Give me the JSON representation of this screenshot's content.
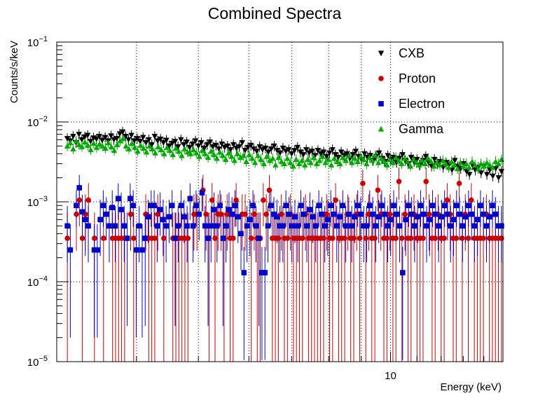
{
  "chart_data": {
    "type": "scatter",
    "title": "Combined Spectra",
    "xlabel": "Energy (keV)",
    "ylabel": "Counts/s/keV",
    "xscale": "log",
    "yscale": "log",
    "xlim": [
      3,
      15
    ],
    "ylim": [
      1e-05,
      0.1
    ],
    "grid": true,
    "legend_position": "top-right",
    "x_tick_labels": [
      {
        "value": 10,
        "text": "10"
      }
    ],
    "y_tick_labels": [
      {
        "value": 1e-05,
        "mantissa": "10",
        "exp": "−5"
      },
      {
        "value": 0.0001,
        "mantissa": "10",
        "exp": "−4"
      },
      {
        "value": 0.001,
        "mantissa": "10",
        "exp": "−3"
      },
      {
        "value": 0.01,
        "mantissa": "10",
        "exp": "−2"
      },
      {
        "value": 0.1,
        "mantissa": "10",
        "exp": "−1"
      }
    ],
    "bin_edges": [
      3.1,
      15.0
    ],
    "series": [
      {
        "name": "CXB",
        "marker": "triangle-down",
        "color": "#000000",
        "values": [
          0.0062,
          0.0058,
          0.0066,
          0.0055,
          0.007,
          0.006,
          0.0065,
          0.0068,
          0.0057,
          0.0063,
          0.0061,
          0.0066,
          0.0059,
          0.0064,
          0.0058,
          0.0067,
          0.006,
          0.0062,
          0.0071,
          0.0075,
          0.0066,
          0.006,
          0.0068,
          0.0058,
          0.0062,
          0.0057,
          0.0064,
          0.0055,
          0.006,
          0.0052,
          0.0066,
          0.0058,
          0.0061,
          0.0055,
          0.0059,
          0.005,
          0.0054,
          0.0057,
          0.0049,
          0.006,
          0.0052,
          0.0056,
          0.0048,
          0.0053,
          0.0058,
          0.005,
          0.0055,
          0.0047,
          0.0052,
          0.0056,
          0.0049,
          0.0051,
          0.0046,
          0.0053,
          0.0048,
          0.005,
          0.0045,
          0.0052,
          0.0047,
          0.0049,
          0.0055,
          0.0044,
          0.0048,
          0.0051,
          0.0046,
          0.0043,
          0.0049,
          0.0045,
          0.0047,
          0.0042,
          0.0046,
          0.005,
          0.0044,
          0.0041,
          0.0047,
          0.0043,
          0.0045,
          0.004,
          0.0044,
          0.0048,
          0.0042,
          0.0039,
          0.0045,
          0.0041,
          0.0043,
          0.0038,
          0.0044,
          0.004,
          0.0042,
          0.0037,
          0.0041,
          0.0045,
          0.0039,
          0.0036,
          0.0042,
          0.0038,
          0.004,
          0.0035,
          0.0039,
          0.0043,
          0.0037,
          0.0034,
          0.004,
          0.0036,
          0.0038,
          0.0033,
          0.0037,
          0.0041,
          0.0035,
          0.0032,
          0.0038,
          0.0034,
          0.0036,
          0.0031,
          0.0035,
          0.0039,
          0.0033,
          0.003,
          0.0036,
          0.0032,
          0.0034,
          0.0029,
          0.0033,
          0.0037,
          0.0031,
          0.0028,
          0.0034,
          0.003,
          0.0032,
          0.0027,
          0.0031,
          0.0029,
          0.0025,
          0.0033,
          0.0028,
          0.0026,
          0.003,
          0.0024,
          0.0022,
          0.0029,
          0.0025,
          0.0027,
          0.0023,
          0.0028,
          0.0022,
          0.0025,
          0.0021,
          0.0026,
          0.002,
          0.0024
        ]
      },
      {
        "name": "Proton",
        "marker": "circle",
        "color": "#cc0000",
        "values": [
          0.00035,
          null,
          null,
          0.0007,
          0.00105,
          0.00035,
          0.0007,
          0.00105,
          null,
          0.00035,
          null,
          null,
          0.00035,
          null,
          null,
          0.00035,
          0.00035,
          0.00035,
          0.00035,
          0.00035,
          null,
          0.0007,
          0.00035,
          null,
          null,
          null,
          0.0007,
          0.00035,
          0.00035,
          0.00035,
          0.0007,
          null,
          0.00035,
          null,
          null,
          0.00035,
          0.00035,
          0.00035,
          0.00035,
          0.00035,
          0.00035,
          null,
          0.0007,
          0.0007,
          null,
          0.0014,
          0.0007,
          0.00035,
          0.00105,
          0.00035,
          0.0007,
          0.0007,
          0.00035,
          0.0007,
          0.00035,
          0.00035,
          0.00105,
          null,
          0.0007,
          0.0007,
          null,
          0.00035,
          0.0007,
          0.00035,
          0.00035,
          0.00105,
          0.0007,
          0.0014,
          0.00035,
          0.00035,
          0.00035,
          0.0007,
          0.00035,
          0.00035,
          0.0007,
          0.00035,
          0.00035,
          0.00035,
          0.00035,
          0.0007,
          0.00035,
          0.00035,
          0.00035,
          0.00035,
          0.00035,
          0.00035,
          0.0007,
          0.00035,
          0.00035,
          0.00105,
          0.00035,
          0.00035,
          0.00035,
          0.0007,
          0.00035,
          0.00035,
          0.0007,
          0.00035,
          0.0017,
          0.00035,
          0.0007,
          0.00035,
          0.00035,
          0.0014,
          0.0007,
          0.00035,
          0.00035,
          0.0007,
          0.00035,
          0.00035,
          0.0018,
          0.00035,
          0.0007,
          0.00035,
          0.00035,
          0.0007,
          0.00035,
          0.00035,
          0.00035,
          0.0018,
          0.0007,
          0.00035,
          0.00035,
          0.0007,
          0.00035,
          0.00035,
          0.00105,
          0.0007,
          0.00035,
          0.00035,
          0.0017,
          0.00035,
          0.0007,
          0.00035,
          0.00105,
          0.00035,
          0.00035,
          0.00035,
          0.00035,
          0.0007,
          0.00035,
          0.00035,
          0.00035,
          0.00035,
          0.00035
        ]
      },
      {
        "name": "Electron",
        "marker": "square",
        "color": "#0000cc",
        "values": [
          0.0005,
          0.00025,
          null,
          0.0009,
          0.0015,
          0.00075,
          0.0006,
          0.0005,
          null,
          0.00025,
          0.00025,
          0.0006,
          0.0009,
          0.0007,
          0.0005,
          0.00085,
          0.0005,
          0.0011,
          0.0008,
          0.0005,
          0.00035,
          0.0011,
          0.0009,
          0.00025,
          0.0005,
          0.00025,
          0.00035,
          0.00065,
          0.0009,
          0.0009,
          0.0005,
          0.0008,
          0.0006,
          0.0005,
          0.00065,
          0.0009,
          0.00035,
          0.0005,
          0.0009,
          0.00065,
          0.0005,
          0.0011,
          0.0005,
          0.0009,
          0.0007,
          0.0013,
          0.0005,
          0.00035,
          0.0005,
          0.0008,
          0.0005,
          0.0009,
          0.00035,
          0.0005,
          0.0008,
          0.0007,
          0.0009,
          0.00065,
          0.0004,
          0.00013,
          0.0005,
          0.0006,
          0.0009,
          0.0005,
          0.00035,
          0.00013,
          0.00013,
          0.0005,
          0.0009,
          0.0007,
          0.00065,
          0.0005,
          0.0005,
          0.0009,
          0.0007,
          0.0005,
          0.00065,
          0.0005,
          0.0009,
          0.0007,
          0.0005,
          0.0008,
          0.00065,
          0.0005,
          0.0009,
          0.0007,
          0.0005,
          0.0006,
          0.0009,
          0.0007,
          0.0005,
          0.00065,
          0.0009,
          0.0005,
          0.0007,
          0.0005,
          0.00065,
          0.0009,
          0.0007,
          0.0005,
          0.0005,
          0.0009,
          0.0007,
          0.0005,
          0.00065,
          0.0009,
          0.0007,
          0.0005,
          0.0006,
          0.0009,
          0.0007,
          0.0005,
          0.00013,
          0.0006,
          0.0009,
          0.0007,
          0.0005,
          0.00065,
          0.0009,
          0.0007,
          0.0005,
          0.0006,
          0.0009,
          0.0007,
          0.0005,
          0.00065,
          0.0009,
          0.0007,
          0.0005,
          0.0006,
          0.0009,
          0.0007,
          0.0005,
          0.00065,
          0.0009,
          0.0007,
          0.0005,
          0.0006,
          0.0009,
          0.0007,
          0.0005,
          0.00065,
          0.0009,
          0.0007,
          0.0005,
          0.0005
        ]
      },
      {
        "name": "Gamma",
        "marker": "triangle-up",
        "color": "#00aa00",
        "values": [
          0.005,
          0.0055,
          0.0046,
          0.0058,
          0.0052,
          0.0049,
          0.0056,
          0.0051,
          0.0045,
          0.0054,
          0.0048,
          0.0053,
          0.005,
          0.0047,
          0.0055,
          0.0049,
          0.0044,
          0.0052,
          0.0058,
          0.0062,
          0.005,
          0.0046,
          0.0054,
          0.0048,
          0.0043,
          0.0051,
          0.0047,
          0.0042,
          0.005,
          0.0046,
          0.0041,
          0.0049,
          0.0045,
          0.004,
          0.0048,
          0.0044,
          0.0039,
          0.0047,
          0.0043,
          0.0038,
          0.0046,
          0.0042,
          0.004,
          0.0045,
          0.0041,
          0.0037,
          0.0044,
          0.004,
          0.0036,
          0.0043,
          0.0039,
          0.0035,
          0.0042,
          0.0038,
          0.0034,
          0.0041,
          0.0037,
          0.0033,
          0.004,
          0.0036,
          0.0038,
          0.0032,
          0.0039,
          0.0035,
          0.0031,
          0.0038,
          0.0034,
          0.003,
          0.0037,
          0.0033,
          0.0035,
          0.0029,
          0.0036,
          0.0032,
          0.003,
          0.0035,
          0.0031,
          0.0028,
          0.0034,
          0.003,
          0.0033,
          0.0029,
          0.0034,
          0.0031,
          0.0036,
          0.003,
          0.0033,
          0.0037,
          0.0031,
          0.0034,
          0.0029,
          0.0035,
          0.0032,
          0.003,
          0.0036,
          0.0033,
          0.0038,
          0.0031,
          0.0035,
          0.0032,
          0.0037,
          0.0034,
          0.003,
          0.0036,
          0.0033,
          0.0038,
          0.0031,
          0.0035,
          0.0032,
          0.0029,
          0.0034,
          0.0031,
          0.0036,
          0.0033,
          0.003,
          0.0035,
          0.0032,
          0.0028,
          0.0034,
          0.0031,
          0.0029,
          0.0033,
          0.003,
          0.0035,
          0.0032,
          0.0028,
          0.0031,
          0.0029,
          0.0033,
          0.003,
          0.0027,
          0.0032,
          0.0029,
          0.0026,
          0.0031,
          0.0028,
          0.003,
          0.0027,
          0.0032,
          0.0029,
          0.0026,
          0.003,
          0.0028,
          0.0031,
          0.0029,
          0.0027,
          0.0032,
          0.003,
          0.0034
        ]
      }
    ]
  }
}
